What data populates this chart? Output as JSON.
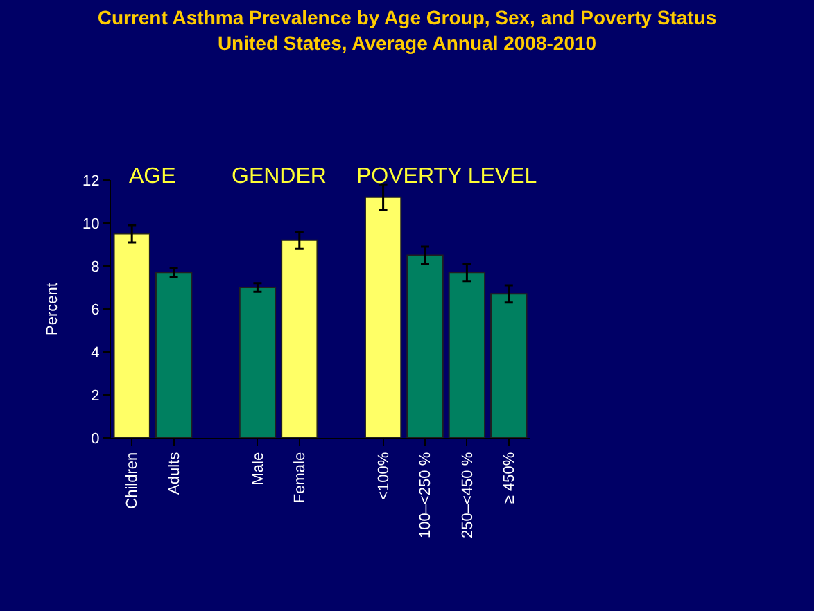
{
  "chart_data": {
    "type": "bar",
    "title": "Current Asthma Prevalence by Age Group, Sex, and Poverty Status\nUnited States, Average Annual 2008-2010",
    "ylabel": "Percent",
    "annotations": [
      "AGE",
      "GENDER",
      "POVERTY LEVEL"
    ],
    "categories": [
      "Children",
      "Adults",
      null,
      "Male",
      "Female",
      null,
      "<100%",
      "100–<250 %",
      "250–<450 %",
      "≥ 450%"
    ],
    "values": [
      9.5,
      7.7,
      null,
      7.0,
      9.2,
      null,
      11.2,
      8.5,
      7.7,
      6.7
    ],
    "colors": [
      "#ffff66",
      "#008060",
      "#008060",
      "#008060",
      "#ffff66",
      "#008060",
      "#ffff66",
      "#008060",
      "#008060",
      "#008060"
    ],
    "errors": [
      [
        9.1,
        9.9
      ],
      [
        7.5,
        7.9
      ],
      null,
      [
        6.8,
        7.2
      ],
      [
        8.8,
        9.6
      ],
      null,
      [
        10.6,
        11.8
      ],
      [
        8.1,
        8.9
      ],
      [
        7.3,
        8.1
      ],
      [
        6.3,
        7.1
      ]
    ],
    "ylim": [
      0,
      12
    ],
    "yticks": [
      0,
      2,
      4,
      6,
      8,
      10,
      12
    ],
    "grid": false,
    "legend": false
  }
}
